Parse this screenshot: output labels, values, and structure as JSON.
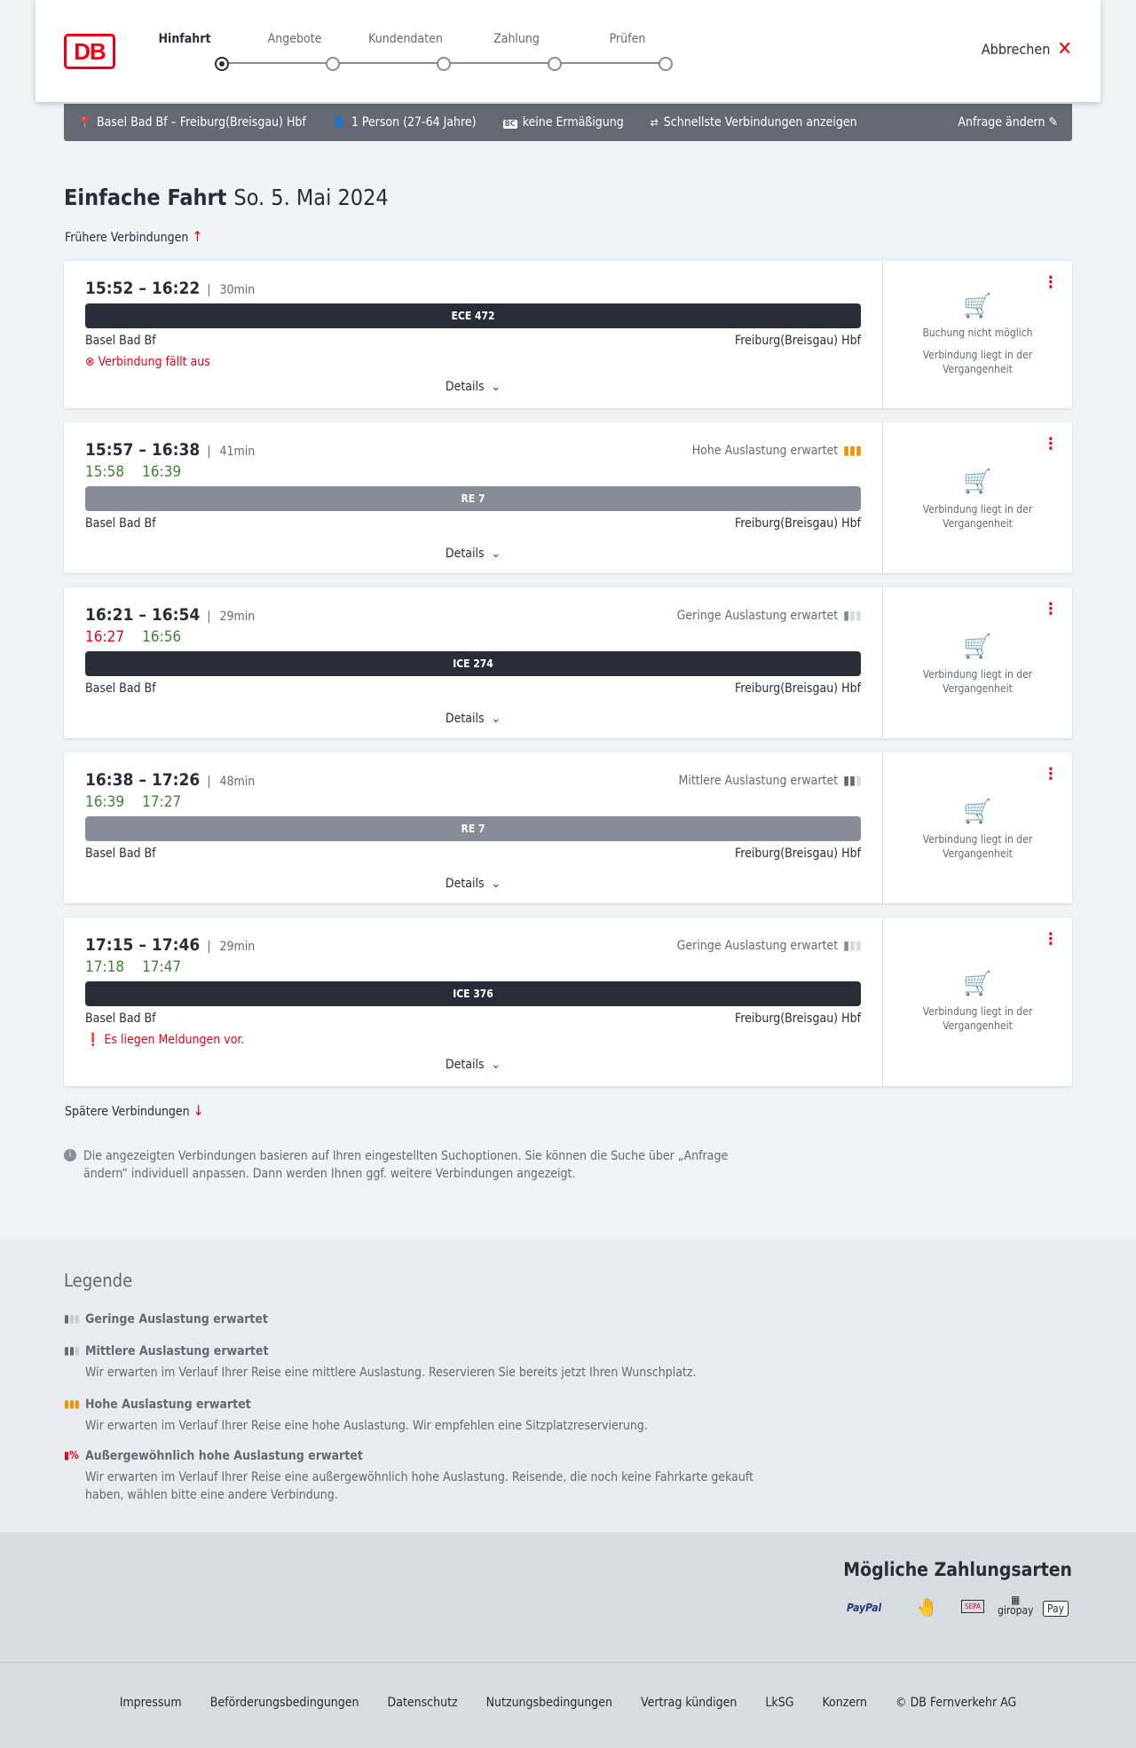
{
  "header": {
    "logo": "DB",
    "steps": [
      "Hinfahrt",
      "Angebote",
      "Kundendaten",
      "Zahlung",
      "Prüfen"
    ],
    "active_step": 0,
    "cancel": "Abbrechen"
  },
  "search_bar": {
    "route": "Basel Bad Bf – Freiburg(Breisgau) Hbf",
    "passengers": "1 Person (27-64 Jahre)",
    "discount_badge": "BC",
    "discount": "keine Ermäßigung",
    "option": "Schnellste Verbindungen anzeigen",
    "edit": "Anfrage ändern"
  },
  "page": {
    "title": "Einfache Fahrt",
    "date": "So. 5. Mai 2024",
    "earlier": "Frühere Verbindungen",
    "later": "Spätere Verbindungen"
  },
  "connections": [
    {
      "time": "15:52 – 16:22",
      "duration": "30min",
      "train": "ECE 472",
      "train_color": "#282d37",
      "from": "Basel Bad Bf",
      "to": "Freiburg(Breisgau) Hbf",
      "message": "Verbindung fällt aus",
      "details": "Details",
      "booking": "Buchung nicht möglich",
      "past": "Verbindung liegt in der Vergangenheit"
    },
    {
      "time": "15:57 – 16:38",
      "duration": "41min",
      "rt_dep": "15:58",
      "rt_arr": "16:39",
      "load": "Hohe Auslastung erwartet",
      "train": "RE 7",
      "train_color": "#878c96",
      "from": "Basel Bad Bf",
      "to": "Freiburg(Breisgau) Hbf",
      "details": "Details",
      "past": "Verbindung liegt in der Vergangenheit"
    },
    {
      "time": "16:21 – 16:54",
      "duration": "29min",
      "rt_dep": "16:27",
      "rt_arr": "16:56",
      "load": "Geringe Auslastung erwartet",
      "train": "ICE 274",
      "train_color": "#282d37",
      "from": "Basel Bad Bf",
      "to": "Freiburg(Breisgau) Hbf",
      "details": "Details",
      "past": "Verbindung liegt in der Vergangenheit"
    },
    {
      "time": "16:38 – 17:26",
      "duration": "48min",
      "rt_dep": "16:39",
      "rt_arr": "17:27",
      "load": "Mittlere Auslastung erwartet",
      "train": "RE 7",
      "train_color": "#878c96",
      "from": "Basel Bad Bf",
      "to": "Freiburg(Breisgau) Hbf",
      "details": "Details",
      "past": "Verbindung liegt in der Vergangenheit"
    },
    {
      "time": "17:15 – 17:46",
      "duration": "29min",
      "rt_dep": "17:18",
      "rt_arr": "17:47",
      "load": "Geringe Auslastung erwartet",
      "train": "ICE 376",
      "train_color": "#282d37",
      "from": "Basel Bad Bf",
      "to": "Freiburg(Breisgau) Hbf",
      "message": "Es liegen Meldungen vor.",
      "details": "Details",
      "past": "Verbindung liegt in der Vergangenheit"
    }
  ],
  "info": "Die angezeigten Verbindungen basieren auf Ihren eingestellten Suchoptionen. Sie können die Suche über „Anfrage ändern“ individuell anpassen. Dann werden Ihnen ggf. weitere Verbindungen angezeigt.",
  "legend": {
    "title": "Legende",
    "items": [
      {
        "label": "Geringe Auslastung erwartet",
        "text": ""
      },
      {
        "label": "Mittlere Auslastung erwartet",
        "text": "Wir erwarten im Verlauf Ihrer Reise eine mittlere Auslastung. Reservieren Sie bereits jetzt Ihren Wunschplatz."
      },
      {
        "label": "Hohe Auslastung erwartet",
        "text": "Wir erwarten im Verlauf Ihrer Reise eine hohe Auslastung. Wir empfehlen eine Sitzplatzreservierung."
      },
      {
        "label": "Außergewöhnlich hohe Auslastung erwartet",
        "text": "Wir erwarten im Verlauf Ihrer Reise eine außergewöhnlich hohe Auslastung. Reisende, die noch keine Fahrkarte gekauft haben, wählen bitte eine andere Verbindung."
      }
    ]
  },
  "payment": {
    "title": "Mögliche Zahlungsarten",
    "methods": [
      "PayPal",
      "Kreditkarte",
      "SEPA",
      "giropay",
      "Pay"
    ]
  },
  "footer": [
    "Impressum",
    "Beförderungsbedingungen",
    "Datenschutz",
    "Nutzungsbedingungen",
    "Vertrag kündigen",
    "LkSG",
    "Konzern",
    "© DB Fernverkehr AG"
  ],
  "colors": {
    "accent": "#ec0016",
    "on_time": "#408335",
    "high_load": "#f39200"
  }
}
